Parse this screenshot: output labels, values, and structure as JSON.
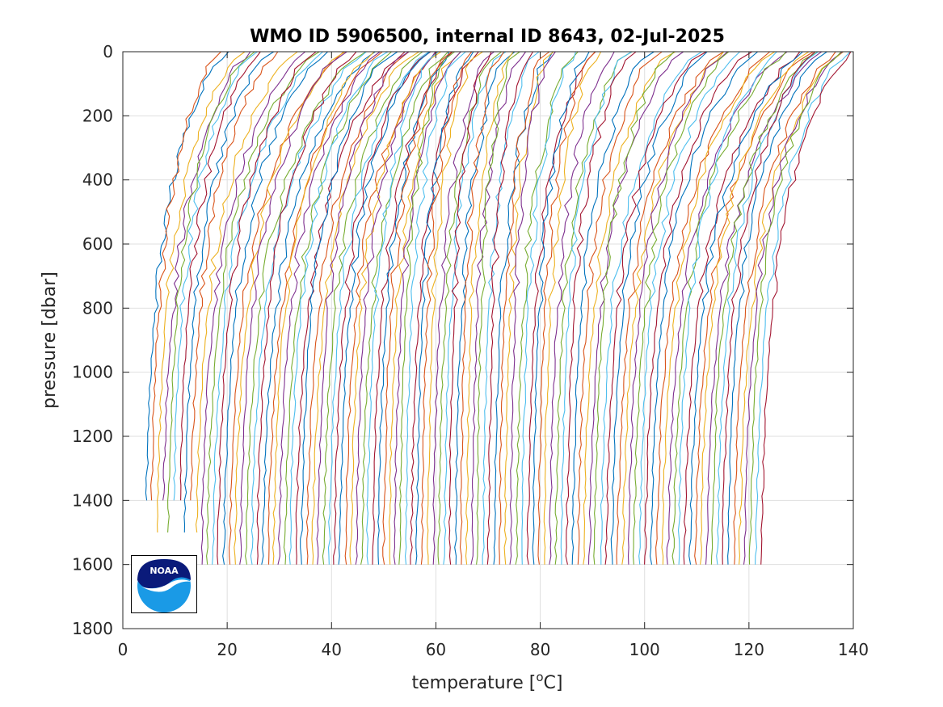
{
  "chart_data": {
    "type": "line",
    "title": "WMO ID 5906500, internal ID 8643, 02-Jul-2025",
    "xlabel": "temperature [°C]",
    "ylabel": "pressure [dbar]",
    "xlim": [
      0,
      140
    ],
    "ylim": [
      0,
      1800
    ],
    "y_reversed": true,
    "grid": true,
    "x_ticks": [
      "0",
      "20",
      "40",
      "60",
      "80",
      "100",
      "120",
      "140"
    ],
    "y_ticks": [
      "0",
      "200",
      "400",
      "600",
      "800",
      "1000",
      "1200",
      "1400",
      "1600",
      "1800"
    ],
    "legend": "none",
    "series_note": "Stacked temperature profiles, each successive profile offset by roughly 1 °C",
    "profile_count": 112,
    "profile_offset_step": 1.0,
    "profile_colors": [
      "#0072BD",
      "#D95319",
      "#EDB120",
      "#7E2F8E",
      "#77AC30",
      "#4DBEEE",
      "#A2142F"
    ],
    "representative_series": [
      {
        "pressure": [
          0,
          100,
          200,
          400,
          600,
          800,
          1000,
          1200,
          1400
        ],
        "temperature": [
          16.5,
          15.0,
          12.0,
          8.0,
          6.0,
          5.0,
          4.5,
          4.2,
          4.0
        ]
      },
      {
        "pressure": [
          0,
          100,
          200,
          400,
          600,
          800,
          1000,
          1200,
          1400,
          1600
        ],
        "temperature": [
          29.0,
          28.0,
          26.0,
          23.0,
          20.5,
          18.5,
          17.0,
          16.2,
          15.6,
          15.2
        ]
      },
      {
        "pressure": [
          0,
          100,
          200,
          400,
          600,
          800,
          1000,
          1200,
          1400,
          1600
        ],
        "temperature": [
          64.0,
          62.5,
          60.0,
          56.0,
          53.0,
          51.0,
          49.5,
          48.7,
          48.2,
          47.8
        ]
      },
      {
        "pressure": [
          0,
          100,
          200,
          400,
          600,
          800,
          1000,
          1200,
          1400,
          1600
        ],
        "temperature": [
          95.0,
          93.5,
          91.0,
          87.0,
          84.0,
          82.0,
          80.5,
          79.5,
          79.0,
          78.6
        ]
      },
      {
        "pressure": [
          0,
          50,
          100,
          200,
          400,
          600,
          800,
          1000,
          1200,
          1400,
          1600
        ],
        "temperature": [
          138.5,
          138.0,
          135.0,
          131.0,
          129.5,
          128.0,
          126.5,
          125.0,
          123.5,
          122.5,
          122.0
        ]
      }
    ]
  },
  "logo": {
    "text": "NOAA",
    "dark_color": "#0a1a7a",
    "light_color": "#1a9ae6"
  }
}
